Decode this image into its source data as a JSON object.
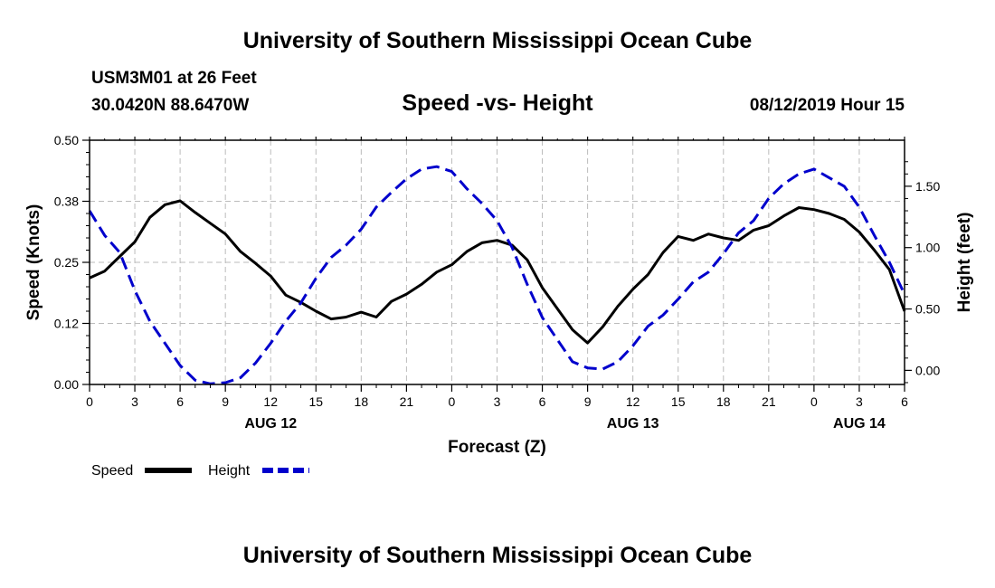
{
  "header": {
    "title": "University of Southern Mississippi Ocean Cube",
    "station": "USM3M01 at 26 Feet",
    "coords": "30.0420N 88.6470W",
    "chart_title": "Speed -vs- Height",
    "run_time": "08/12/2019 Hour 15"
  },
  "footer": {
    "title": "University of Southern Mississippi Ocean Cube"
  },
  "colors": {
    "speed": "#000000",
    "height": "#0000cc",
    "grid": "#bbbbbb"
  },
  "chart_data": {
    "type": "line",
    "title": "Speed -vs- Height",
    "xlabel": "Forecast (Z)",
    "ylabel_left": "Speed (Knots)",
    "ylabel_right": "Height (feet)",
    "xlim": [
      0,
      54
    ],
    "ylim_left": [
      0,
      0.5
    ],
    "ylim_right": [
      -0.115,
      1.875
    ],
    "x_ticks": [
      0,
      3,
      6,
      9,
      12,
      15,
      18,
      21,
      24,
      27,
      30,
      33,
      36,
      39,
      42,
      45,
      48,
      51,
      54
    ],
    "x_tick_labels": [
      "0",
      "3",
      "6",
      "9",
      "12",
      "15",
      "18",
      "21",
      "0",
      "3",
      "6",
      "9",
      "12",
      "15",
      "18",
      "21",
      "0",
      "3",
      "6"
    ],
    "date_labels": [
      {
        "x": 12,
        "label": "AUG 12"
      },
      {
        "x": 36,
        "label": "AUG 13"
      },
      {
        "x": 51,
        "label": "AUG 14"
      }
    ],
    "y_left_ticks": [
      0,
      0.125,
      0.25,
      0.375,
      0.5
    ],
    "y_left_tick_labels": [
      "0.00",
      "0.12",
      "0.25",
      "0.38",
      "0.50"
    ],
    "y_right_ticks": [
      0,
      0.5,
      1,
      1.5
    ],
    "y_right_tick_labels": [
      "0.00",
      "0.50",
      "1.00",
      "1.50"
    ],
    "grid": true,
    "legend": [
      {
        "name": "Speed",
        "style": "solid"
      },
      {
        "name": "Height",
        "style": "dashed"
      }
    ],
    "series": [
      {
        "name": "Speed",
        "axis": "left",
        "x": [
          0,
          1,
          2,
          3,
          4,
          5,
          6,
          7,
          8,
          9,
          10,
          11,
          12,
          13,
          14,
          15,
          16,
          17,
          18,
          19,
          20,
          21,
          22,
          23,
          24,
          25,
          26,
          27,
          28,
          29,
          30,
          31,
          32,
          33,
          34,
          35,
          36,
          37,
          38,
          39,
          40,
          41,
          42,
          43,
          44,
          45,
          46,
          47,
          48,
          49,
          50,
          51,
          52,
          53,
          54
        ],
        "values": [
          0.218,
          0.232,
          0.262,
          0.292,
          0.342,
          0.368,
          0.376,
          0.352,
          0.33,
          0.308,
          0.272,
          0.248,
          0.222,
          0.183,
          0.168,
          0.15,
          0.134,
          0.138,
          0.148,
          0.138,
          0.17,
          0.185,
          0.205,
          0.23,
          0.245,
          0.272,
          0.29,
          0.295,
          0.285,
          0.255,
          0.198,
          0.155,
          0.112,
          0.085,
          0.118,
          0.16,
          0.195,
          0.225,
          0.27,
          0.303,
          0.295,
          0.308,
          0.3,
          0.295,
          0.316,
          0.325,
          0.345,
          0.362,
          0.358,
          0.35,
          0.338,
          0.312,
          0.275,
          0.235,
          0.15
        ]
      },
      {
        "name": "Height",
        "axis": "right",
        "x": [
          0,
          1,
          2,
          3,
          4,
          5,
          6,
          7,
          8,
          9,
          10,
          11,
          12,
          13,
          14,
          15,
          16,
          17,
          18,
          19,
          20,
          21,
          22,
          23,
          24,
          25,
          26,
          27,
          28,
          29,
          30,
          31,
          32,
          33,
          34,
          35,
          36,
          37,
          38,
          39,
          40,
          41,
          42,
          43,
          44,
          45,
          46,
          47,
          48,
          49,
          50,
          51,
          52,
          53,
          54
        ],
        "values": [
          1.3,
          1.1,
          0.96,
          0.65,
          0.4,
          0.22,
          0.04,
          -0.08,
          -0.11,
          -0.1,
          -0.06,
          0.06,
          0.22,
          0.4,
          0.55,
          0.75,
          0.92,
          1.02,
          1.15,
          1.33,
          1.45,
          1.56,
          1.64,
          1.66,
          1.62,
          1.48,
          1.36,
          1.22,
          1.0,
          0.7,
          0.43,
          0.25,
          0.07,
          0.02,
          0.01,
          0.07,
          0.2,
          0.36,
          0.45,
          0.58,
          0.72,
          0.8,
          0.95,
          1.12,
          1.22,
          1.4,
          1.52,
          1.6,
          1.64,
          1.57,
          1.5,
          1.33,
          1.1,
          0.88,
          0.62
        ]
      }
    ]
  }
}
